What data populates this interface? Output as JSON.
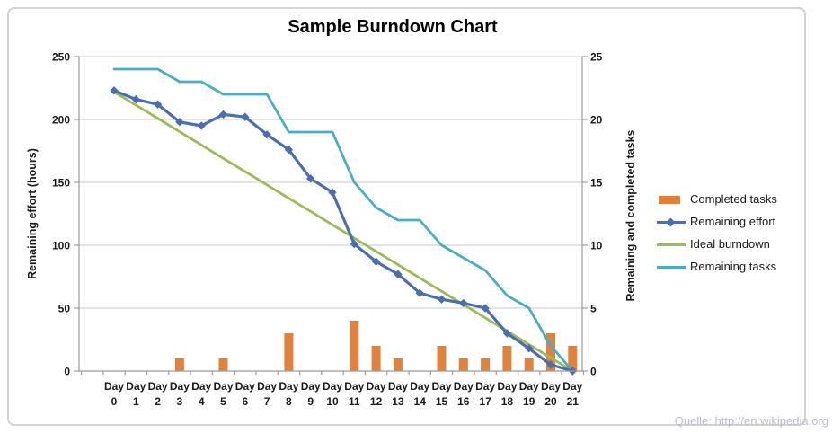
{
  "title": "Sample Burndown Chart",
  "watermark": "Quelle: http://en.wikipedia.org",
  "chart_data": {
    "type": "combo",
    "x_label_prefix": "Day",
    "categories": [
      0,
      1,
      2,
      3,
      4,
      5,
      6,
      7,
      8,
      9,
      10,
      11,
      12,
      13,
      14,
      15,
      16,
      17,
      18,
      19,
      20,
      21
    ],
    "series": [
      {
        "name": "Completed tasks",
        "type": "bar",
        "axis": "right",
        "color": "#DE823D",
        "values": [
          0,
          0,
          0,
          1,
          0,
          1,
          0,
          0,
          3,
          0,
          0,
          4,
          2,
          1,
          0,
          2,
          1,
          1,
          2,
          1,
          3,
          2
        ]
      },
      {
        "name": "Remaining effort",
        "type": "line",
        "marker": "diamond",
        "axis": "left",
        "color": "#4A6EAF",
        "values": [
          223,
          216,
          212,
          198,
          195,
          204,
          202,
          188,
          176,
          153,
          142,
          101,
          87,
          77,
          62,
          57,
          54,
          50,
          30,
          18,
          5,
          0
        ]
      },
      {
        "name": "Ideal burndown",
        "type": "line",
        "axis": "left",
        "color": "#9BBB59",
        "values": [
          222,
          211.4,
          200.9,
          190.3,
          179.7,
          169.1,
          158.6,
          148,
          137.4,
          126.9,
          116.3,
          105.7,
          95.1,
          84.6,
          74,
          63.4,
          52.9,
          42.3,
          31.7,
          21.1,
          10.6,
          0
        ]
      },
      {
        "name": "Remaining tasks",
        "type": "line",
        "axis": "right",
        "color": "#4BACC6",
        "values": [
          24,
          24,
          24,
          23,
          23,
          22,
          22,
          22,
          19,
          19,
          19,
          15,
          13,
          12,
          12,
          10,
          9,
          8,
          6,
          5,
          2,
          0
        ]
      }
    ],
    "y_left": {
      "label": "Remaining effort (hours)",
      "min": 0,
      "max": 250,
      "ticks": [
        0,
        50,
        100,
        150,
        200,
        250
      ]
    },
    "y_right": {
      "label": "Remaining and completed tasks",
      "min": 0,
      "max": 25,
      "ticks": [
        0,
        5,
        10,
        15,
        20,
        25
      ]
    },
    "grid": true,
    "legend_position": "right",
    "colors": {
      "gridline": "#C8C8C8",
      "axis": "#9B9B9B",
      "text": "#1a1a1a"
    }
  }
}
